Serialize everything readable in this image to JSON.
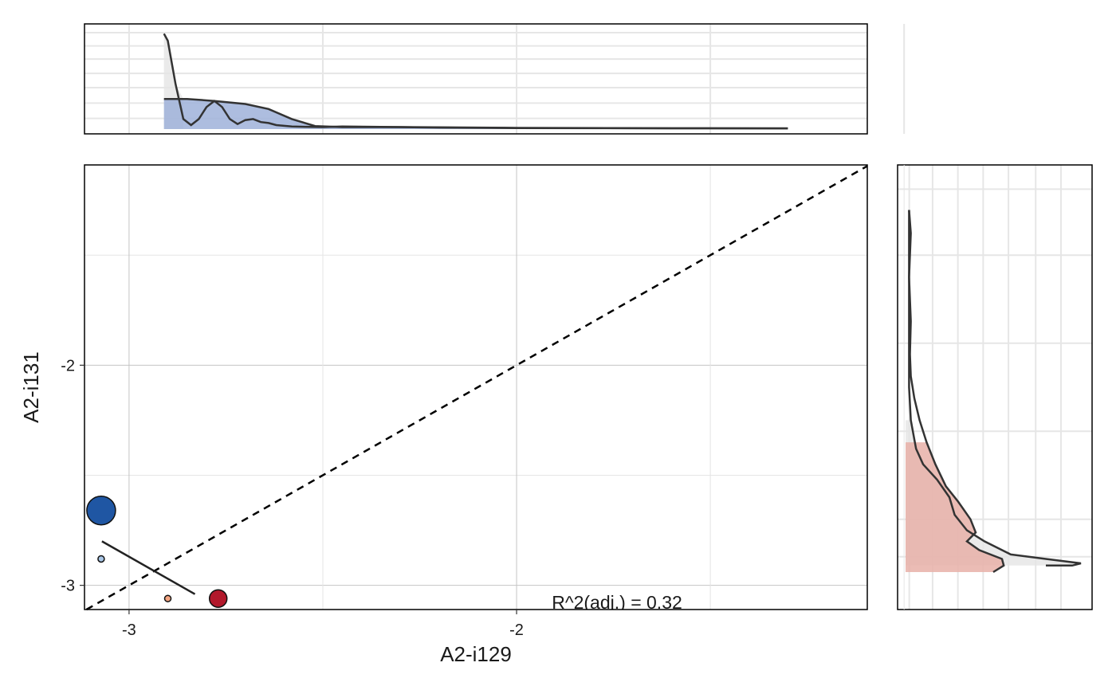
{
  "chart_data": {
    "type": "scatter",
    "xlabel": "A2-i129",
    "ylabel": "A2-i131",
    "xlim": [
      -3.115,
      -1.095
    ],
    "ylim": [
      -3.11,
      -1.09
    ],
    "x_ticks": [
      {
        "v": -3,
        "label": "-3"
      },
      {
        "v": -2,
        "label": "-2"
      }
    ],
    "y_ticks": [
      {
        "v": -2,
        "label": "-2"
      },
      {
        "v": -3,
        "label": "-3"
      }
    ],
    "x_minor": [
      -2.5,
      -1.5
    ],
    "y_minor": [
      -2.5,
      -1.5
    ],
    "grid": true,
    "points": [
      {
        "x": -3.072,
        "y": -2.66,
        "size": "large",
        "color": "#1f56a3"
      },
      {
        "x": -3.072,
        "y": -2.88,
        "size": "small",
        "color": "#a9c6e6"
      },
      {
        "x": -2.9,
        "y": -3.06,
        "size": "small",
        "color": "#f4a582"
      },
      {
        "x": -2.77,
        "y": -3.06,
        "size": "medium",
        "color": "#b2182b"
      }
    ],
    "fit_line": {
      "x": [
        -3.07,
        -2.83
      ],
      "y": [
        -2.8,
        -3.04
      ]
    },
    "identity_line": true,
    "annotation": "R^2(adj.) = 0.32",
    "top_density": {
      "fill_color": "#9fb1d9",
      "bg_color": "#e5e5e5",
      "curve_a": [
        [
          -2.91,
          0.95
        ],
        [
          -2.9,
          0.88
        ],
        [
          -2.88,
          0.45
        ],
        [
          -2.86,
          0.1
        ],
        [
          -2.84,
          0.04
        ],
        [
          -2.82,
          0.1
        ],
        [
          -2.8,
          0.22
        ],
        [
          -2.78,
          0.28
        ],
        [
          -2.76,
          0.22
        ],
        [
          -2.74,
          0.1
        ],
        [
          -2.72,
          0.05
        ],
        [
          -2.7,
          0.09
        ],
        [
          -2.68,
          0.1
        ],
        [
          -2.66,
          0.07
        ],
        [
          -2.64,
          0.06
        ],
        [
          -2.62,
          0.04
        ],
        [
          -2.58,
          0.025
        ],
        [
          -2.5,
          0.02
        ],
        [
          -2.45,
          0.025
        ],
        [
          -2.3,
          0.02
        ],
        [
          -2.2,
          0.015
        ],
        [
          -2.0,
          0.01
        ],
        [
          -1.6,
          0.008
        ],
        [
          -1.3,
          0.007
        ]
      ],
      "curve_b": [
        [
          -2.91,
          0.3
        ],
        [
          -2.85,
          0.3
        ],
        [
          -2.78,
          0.28
        ],
        [
          -2.7,
          0.25
        ],
        [
          -2.64,
          0.2
        ],
        [
          -2.58,
          0.1
        ],
        [
          -2.52,
          0.03
        ],
        [
          -2.45,
          0.02
        ],
        [
          -2.3,
          0.02
        ],
        [
          -2.0,
          0.012
        ],
        [
          -1.6,
          0.008
        ],
        [
          -1.3,
          0.007
        ]
      ]
    },
    "right_density": {
      "fill_color": "#e8b0a8",
      "bg_color": "#e5e5e5",
      "curve_a": [
        [
          -1.295,
          0.02
        ],
        [
          -1.4,
          0.03
        ],
        [
          -1.6,
          0.02
        ],
        [
          -1.8,
          0.03
        ],
        [
          -1.95,
          0.025
        ],
        [
          -2.05,
          0.03
        ],
        [
          -2.15,
          0.05
        ],
        [
          -2.25,
          0.08
        ],
        [
          -2.35,
          0.12
        ],
        [
          -2.45,
          0.17
        ],
        [
          -2.55,
          0.23
        ],
        [
          -2.62,
          0.3
        ],
        [
          -2.7,
          0.37
        ],
        [
          -2.76,
          0.4
        ],
        [
          -2.8,
          0.35
        ],
        [
          -2.84,
          0.42
        ],
        [
          -2.88,
          0.55
        ],
        [
          -2.91,
          0.56
        ],
        [
          -2.94,
          0.5
        ]
      ],
      "curve_b": [
        [
          -1.295,
          0.02
        ],
        [
          -1.4,
          0.02
        ],
        [
          -1.6,
          0.02
        ],
        [
          -1.8,
          0.02
        ],
        [
          -1.95,
          0.02
        ],
        [
          -2.1,
          0.02
        ],
        [
          -2.25,
          0.03
        ],
        [
          -2.38,
          0.06
        ],
        [
          -2.45,
          0.1
        ],
        [
          -2.52,
          0.18
        ],
        [
          -2.6,
          0.25
        ],
        [
          -2.68,
          0.28
        ],
        [
          -2.75,
          0.35
        ],
        [
          -2.8,
          0.45
        ],
        [
          -2.84,
          0.55
        ],
        [
          -2.86,
          0.6
        ],
        [
          -2.88,
          0.8
        ],
        [
          -2.9,
          1.0
        ],
        [
          -2.91,
          0.95
        ],
        [
          -2.91,
          0.8
        ]
      ]
    }
  }
}
